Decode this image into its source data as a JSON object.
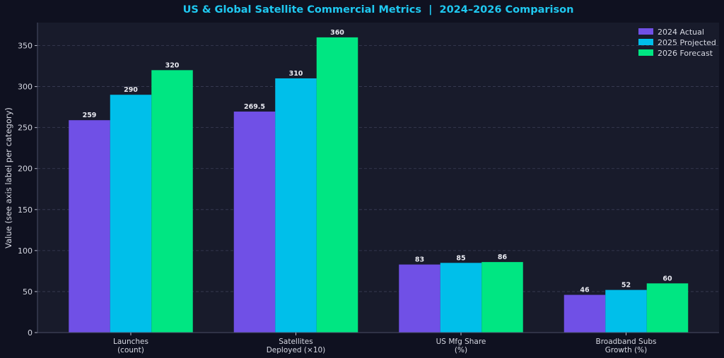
{
  "chart_data": {
    "type": "bar",
    "title": "US & Global Satellite Commercial Metrics  |  2024–2026 Comparison",
    "xlabel": "",
    "ylabel": "Value (see axis label per category)",
    "ylim": [
      0,
      378
    ],
    "yticks": [
      0,
      50,
      100,
      150,
      200,
      250,
      300,
      350
    ],
    "grid": "horizontal dashed",
    "legend_position": "top-right",
    "categories": [
      [
        "Launches",
        "(count)"
      ],
      [
        "Satellites",
        "Deployed (×10)"
      ],
      [
        "US Mfg Share",
        "(%)"
      ],
      [
        "Broadband Subs",
        "Growth (%)"
      ]
    ],
    "series": [
      {
        "name": "2024 Actual",
        "color": "#7050e6",
        "values": [
          259,
          269.5,
          83,
          46
        ],
        "labels": [
          "259",
          "269.5",
          "83",
          "46"
        ]
      },
      {
        "name": "2025 Projected",
        "color": "#00bfea",
        "values": [
          290,
          310,
          85,
          52
        ],
        "labels": [
          "290",
          "310",
          "85",
          "52"
        ]
      },
      {
        "name": "2026 Forecast",
        "color": "#00e682",
        "values": [
          320,
          360,
          86,
          60
        ],
        "labels": [
          "320",
          "360",
          "86",
          "60"
        ]
      }
    ]
  }
}
